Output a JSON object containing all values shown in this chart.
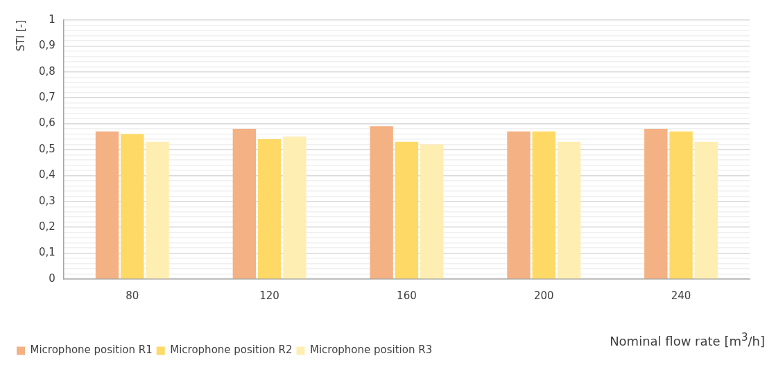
{
  "chart_data": {
    "type": "bar",
    "xlabel": "Nominal flow rate [m$^{3}$/h]",
    "ylabel": "STI [-]",
    "categories": [
      "80",
      "120",
      "160",
      "200",
      "240"
    ],
    "series": [
      {
        "name": "Microphone position R1",
        "color": "#f4b183",
        "values": [
          0.57,
          0.58,
          0.59,
          0.57,
          0.58
        ]
      },
      {
        "name": "Microphone position R2",
        "color": "#ffd966",
        "values": [
          0.56,
          0.54,
          0.53,
          0.57,
          0.57
        ]
      },
      {
        "name": "Microphone position R3",
        "color": "#ffeeb1",
        "values": [
          0.53,
          0.55,
          0.52,
          0.53,
          0.53
        ]
      }
    ],
    "ylim": [
      0,
      1
    ],
    "yticks": [
      0,
      {
        "value": 0.02,
        "label": null
      },
      {
        "value": 0.04,
        "label": null
      },
      {
        "value": 0.06,
        "label": null
      },
      {
        "value": 0.08,
        "label": null
      },
      {
        "value": 0.1,
        "label": "0,1"
      },
      {
        "value": 0.12,
        "label": null
      },
      {
        "value": 0.14,
        "label": null
      },
      {
        "value": 0.16,
        "label": null
      },
      {
        "value": 0.18,
        "label": null
      },
      {
        "value": 0.2,
        "label": "0,2"
      },
      {
        "value": 0.22,
        "label": null
      },
      {
        "value": 0.24,
        "label": null
      },
      {
        "value": 0.26,
        "label": null
      },
      {
        "value": 0.28,
        "label": null
      },
      {
        "value": 0.3,
        "label": "0,3"
      },
      {
        "value": 0.32,
        "label": null
      },
      {
        "value": 0.34,
        "label": null
      },
      {
        "value": 0.36,
        "label": null
      },
      {
        "value": 0.38,
        "label": null
      },
      {
        "value": 0.4,
        "label": "0,4"
      },
      {
        "value": 0.42,
        "label": null
      },
      {
        "value": 0.44,
        "label": null
      },
      {
        "value": 0.46,
        "label": null
      },
      {
        "value": 0.48,
        "label": null
      },
      {
        "value": 0.5,
        "label": "0,5"
      },
      {
        "value": 0.52,
        "label": null
      },
      {
        "value": 0.54,
        "label": null
      },
      {
        "value": 0.56,
        "label": null
      },
      {
        "value": 0.58,
        "label": null
      },
      {
        "value": 0.6,
        "label": "0,6"
      },
      {
        "value": 0.62,
        "label": null
      },
      {
        "value": 0.64,
        "label": null
      },
      {
        "value": 0.66,
        "label": null
      },
      {
        "value": 0.68,
        "label": null
      },
      {
        "value": 0.7,
        "label": "0,7"
      },
      {
        "value": 0.72,
        "label": null
      },
      {
        "value": 0.74,
        "label": null
      },
      {
        "value": 0.76,
        "label": null
      },
      {
        "value": 0.78,
        "label": null
      },
      {
        "value": 0.8,
        "label": "0,8"
      },
      {
        "value": 0.82,
        "label": null
      },
      {
        "value": 0.84,
        "label": null
      },
      {
        "value": 0.86,
        "label": null
      },
      {
        "value": 0.88,
        "label": null
      },
      {
        "value": 0.9,
        "label": "0,9"
      },
      {
        "value": 0.92,
        "label": null
      },
      {
        "value": 0.94,
        "label": null
      },
      {
        "value": 0.96,
        "label": null
      },
      {
        "value": 0.98,
        "label": null
      },
      1
    ],
    "grid": "y",
    "legend": "bottom"
  }
}
